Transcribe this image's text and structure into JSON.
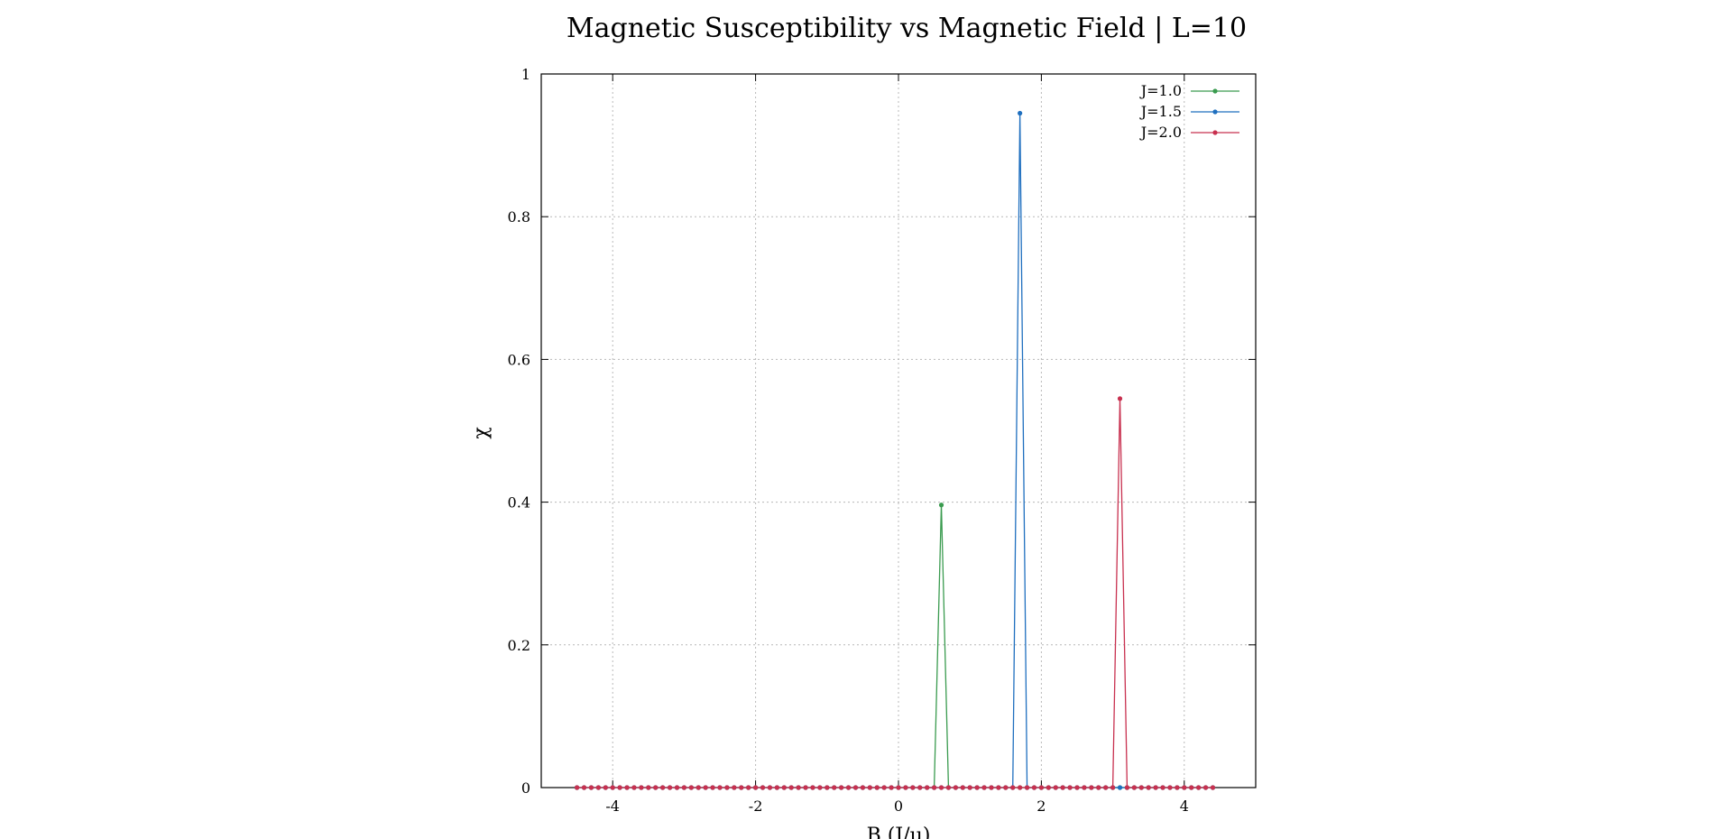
{
  "chart_data": {
    "type": "line",
    "title": "Magnetic Susceptibility vs Magnetic Field | L=10",
    "xlabel": "B (J/μ)",
    "ylabel": "χ",
    "xlim": [
      -5,
      5
    ],
    "ylim": [
      0,
      1
    ],
    "xticks": [
      -4,
      -2,
      0,
      2,
      4
    ],
    "xtick_labels": [
      "-4",
      "-2",
      "0",
      "2",
      "4"
    ],
    "yticks": [
      0,
      0.2,
      0.4,
      0.6,
      0.8,
      1
    ],
    "ytick_labels": [
      "0",
      "0.2",
      "0.4",
      "0.6",
      "0.8",
      "1"
    ],
    "grid": true,
    "legend_position": "top-right",
    "x_start": -4.5,
    "x_step": 0.1,
    "n_points": 90,
    "series": [
      {
        "name": "J=1.0",
        "color": "#3a9b4f",
        "peaks": [
          {
            "x": 0.6,
            "y": 0.396
          }
        ]
      },
      {
        "name": "J=1.5",
        "color": "#1f6fbf",
        "peaks": [
          {
            "x": 1.7,
            "y": 0.945
          }
        ]
      },
      {
        "name": "J=2.0",
        "color": "#c8304f",
        "peaks": [
          {
            "x": 3.1,
            "y": 0.545
          }
        ]
      }
    ],
    "baseline_value": 0
  }
}
